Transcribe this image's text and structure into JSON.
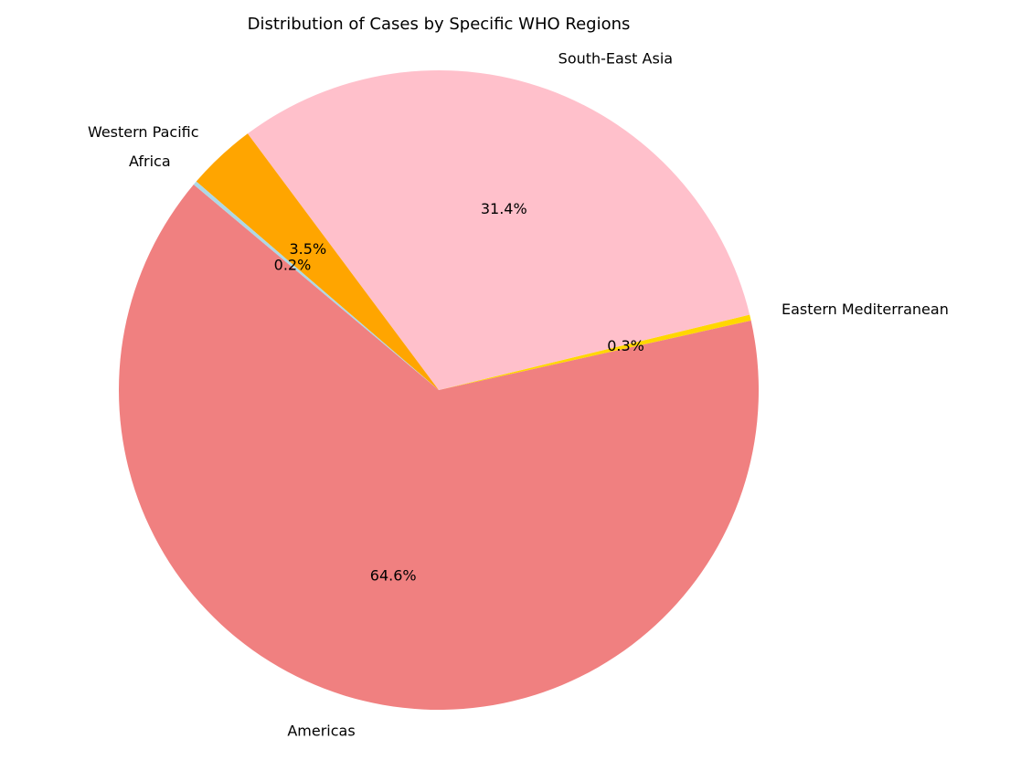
{
  "chart_data": {
    "type": "pie",
    "title": "Distribution of Cases by Specific WHO Regions",
    "slices": [
      {
        "label": "Americas",
        "percent": 64.6,
        "pct_label": "64.6%",
        "color": "#F08080"
      },
      {
        "label": "Eastern Mediterranean",
        "percent": 0.3,
        "pct_label": "0.3%",
        "color": "#FFD700"
      },
      {
        "label": "South-East Asia",
        "percent": 31.4,
        "pct_label": "31.4%",
        "color": "#FFC0CB"
      },
      {
        "label": "Western Pacific",
        "percent": 3.5,
        "pct_label": "3.5%",
        "color": "#FFA500"
      },
      {
        "label": "Africa",
        "percent": 0.2,
        "pct_label": "0.2%",
        "color": "#ADD8E6"
      }
    ],
    "start_angle_deg": 140,
    "direction": "counterclockwise",
    "legend": "none"
  }
}
